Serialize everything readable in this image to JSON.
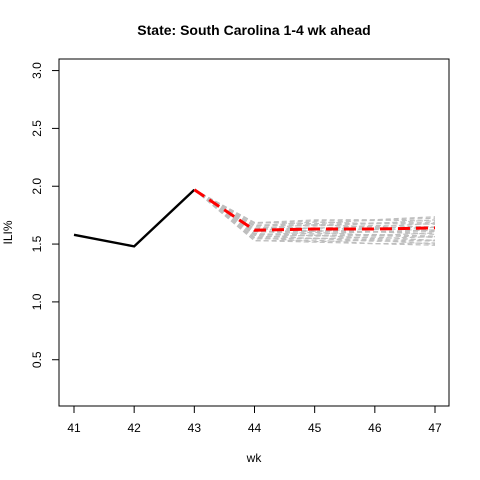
{
  "chart_data": {
    "type": "line",
    "title": "State: South Carolina 1-4 wk ahead",
    "xlabel": "wk",
    "ylabel": "ILI%",
    "xlim": [
      41,
      47
    ],
    "ylim": [
      0.1,
      3.1
    ],
    "xticks": [
      41,
      42,
      43,
      44,
      45,
      46,
      47
    ],
    "yticks": [
      0.5,
      1.0,
      1.5,
      2.0,
      2.5,
      3.0
    ],
    "ytick_labels": [
      "0.5",
      "1.0",
      "1.5",
      "2.0",
      "2.5",
      "3.0"
    ],
    "grid": false,
    "legend": "none",
    "colors": {
      "observed": "#000000",
      "forecast_mean": "#ff0000",
      "forecast_samples": "#bebebe"
    },
    "series": [
      {
        "role": "observed",
        "style": "solid",
        "x": [
          41,
          42,
          43
        ],
        "y": [
          1.58,
          1.48,
          1.97
        ]
      },
      {
        "role": "forecast_mean",
        "style": "dashed",
        "x": [
          43,
          44,
          45,
          46,
          47
        ],
        "y": [
          1.97,
          1.62,
          1.63,
          1.63,
          1.64
        ]
      }
    ],
    "forecast_samples": {
      "start": [
        43,
        1.97
      ],
      "x": [
        44,
        45,
        46,
        47
      ],
      "y_range_at_44": [
        1.53,
        1.69
      ],
      "y_range_at_47": [
        1.49,
        1.73
      ]
    }
  }
}
